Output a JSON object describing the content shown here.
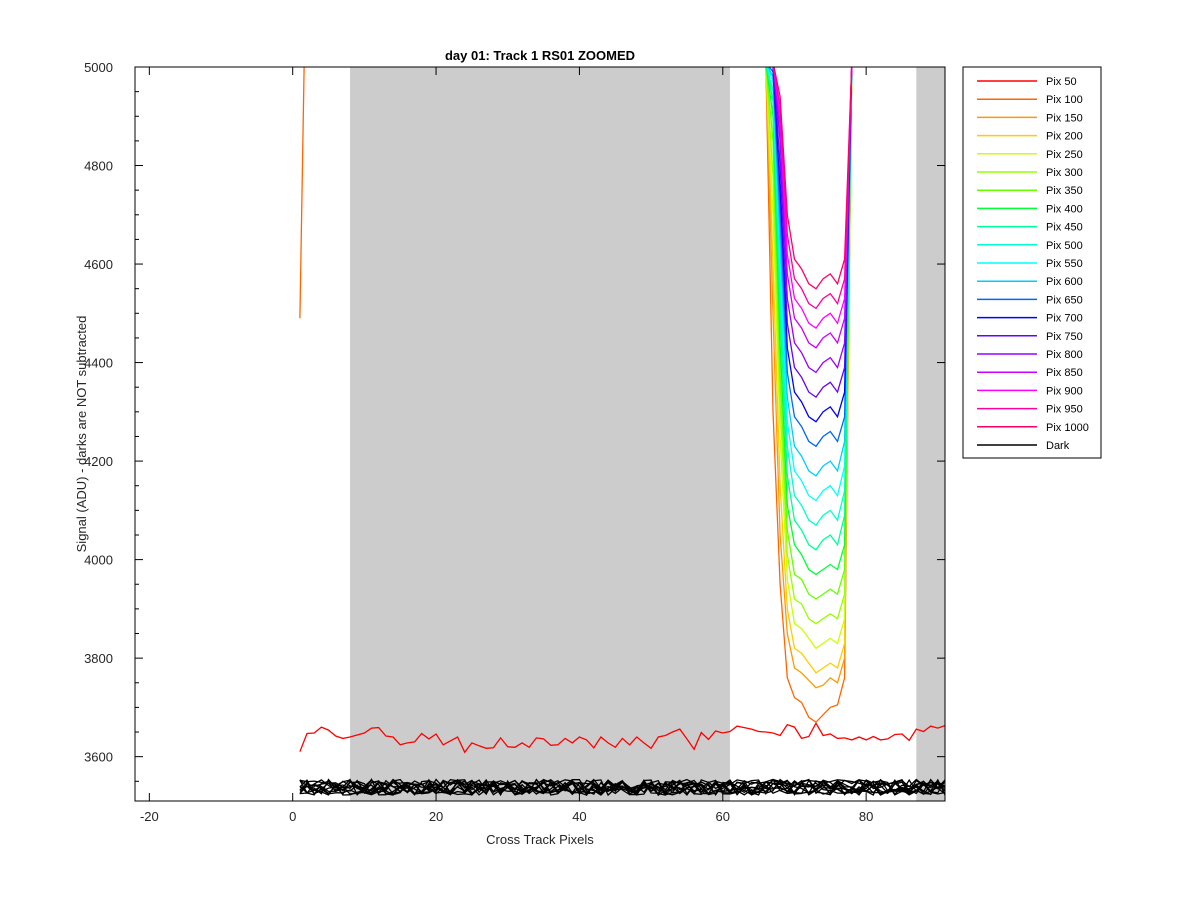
{
  "chart_data": {
    "type": "line",
    "title": "day 01: Track 1  RS01 ZOOMED",
    "xlabel": "Cross Track Pixels",
    "ylabel": "Signal (ADU) - darks are NOT subtracted",
    "xlim": [
      -22,
      91
    ],
    "ylim": [
      3510,
      5000
    ],
    "x_ticks": [
      -20,
      0,
      20,
      40,
      60,
      80
    ],
    "y_ticks": [
      3600,
      3800,
      4000,
      4200,
      4400,
      4600,
      4800,
      5000
    ],
    "grid": false,
    "legend_position": "outside-right",
    "shaded_regions": [
      {
        "x_start": 8,
        "x_end": 61,
        "color": "#cccccc"
      },
      {
        "x_start": 87,
        "x_end": 91,
        "color": "#cccccc"
      }
    ],
    "curve_x": [
      66,
      67,
      68,
      69,
      70,
      71,
      72,
      73,
      74,
      75,
      76,
      77,
      78,
      79
    ],
    "series": [
      {
        "name": "Pix 50",
        "color": "#ff0000",
        "x": [
          1,
          2,
          3,
          4,
          5,
          6,
          7,
          8,
          9,
          10,
          11,
          12,
          13,
          14,
          15,
          16,
          17,
          18,
          19,
          20,
          21,
          22,
          23,
          24,
          25,
          26,
          27,
          28,
          29,
          30,
          31,
          32,
          33,
          34,
          35,
          36,
          37,
          38,
          39,
          40,
          41,
          42,
          43,
          44,
          45,
          46,
          47,
          48,
          49,
          50,
          51,
          52,
          53,
          54,
          55,
          56,
          57,
          58,
          59,
          60,
          61,
          62,
          63,
          64,
          65,
          66,
          67,
          68,
          69,
          70,
          71,
          72,
          73,
          74,
          75,
          76,
          77,
          78,
          79,
          80,
          81,
          82,
          83,
          84,
          85,
          86,
          87,
          88,
          89,
          90,
          91
        ],
        "values": [
          3610,
          3647,
          3648,
          3660,
          3654,
          3642,
          3637,
          3640,
          3644,
          3648,
          3658,
          3659,
          3642,
          3640,
          3624,
          3628,
          3630,
          3647,
          3636,
          3646,
          3624,
          3632,
          3640,
          3609,
          3628,
          3622,
          3617,
          3618,
          3638,
          3620,
          3619,
          3628,
          3619,
          3638,
          3636,
          3623,
          3624,
          3637,
          3628,
          3640,
          3634,
          3618,
          3640,
          3628,
          3619,
          3637,
          3624,
          3640,
          3628,
          3617,
          3640,
          3643,
          3650,
          3656,
          3636,
          3615,
          3649,
          3635,
          3652,
          3648,
          3651,
          3662,
          3659,
          3656,
          3651,
          3650,
          3648,
          3643,
          3665,
          3660,
          3637,
          3641,
          3668,
          3643,
          3646,
          3637,
          3638,
          3634,
          3640,
          3634,
          3641,
          3634,
          3636,
          3645,
          3646,
          3633,
          3656,
          3651,
          3662,
          3658,
          3663
        ]
      },
      {
        "name": "Pix 100",
        "color": "#ff6600",
        "x": [
          1,
          1.6,
          66,
          67,
          68,
          69,
          70,
          71,
          72,
          73,
          74,
          75,
          76,
          77,
          78,
          79
        ],
        "values": [
          4490,
          5010,
          5010,
          4300,
          3950,
          3760,
          3720,
          3710,
          3680,
          3670,
          3685,
          3700,
          3705,
          3760,
          5010,
          5010
        ]
      },
      {
        "name": "Pix 150",
        "color": "#ff9900",
        "values": [
          5010,
          4500,
          4050,
          3850,
          3780,
          3770,
          3755,
          3740,
          3745,
          3760,
          3750,
          3800,
          5010,
          5010
        ]
      },
      {
        "name": "Pix 200",
        "color": "#ffcc00",
        "values": [
          5010,
          4600,
          4150,
          3900,
          3820,
          3810,
          3790,
          3770,
          3780,
          3790,
          3780,
          3830,
          5010,
          5010
        ]
      },
      {
        "name": "Pix 250",
        "color": "#ccff00",
        "values": [
          5010,
          4700,
          4250,
          3960,
          3870,
          3860,
          3840,
          3820,
          3830,
          3840,
          3830,
          3880,
          5010,
          5010
        ]
      },
      {
        "name": "Pix 300",
        "color": "#99ff00",
        "values": [
          5010,
          4780,
          4320,
          4010,
          3920,
          3910,
          3880,
          3870,
          3880,
          3890,
          3880,
          3930,
          5010,
          5010
        ]
      },
      {
        "name": "Pix 350",
        "color": "#66ff00",
        "values": [
          5010,
          4850,
          4380,
          4060,
          3970,
          3960,
          3930,
          3920,
          3930,
          3940,
          3930,
          3980,
          5010,
          5010
        ]
      },
      {
        "name": "Pix 400",
        "color": "#00ff33",
        "values": [
          5010,
          4900,
          4440,
          4110,
          4030,
          4010,
          3980,
          3970,
          3980,
          3990,
          3980,
          4030,
          5010,
          5010
        ]
      },
      {
        "name": "Pix 450",
        "color": "#00ff99",
        "values": [
          5010,
          4930,
          4500,
          4170,
          4080,
          4060,
          4030,
          4020,
          4040,
          4050,
          4030,
          4090,
          5010,
          5010
        ]
      },
      {
        "name": "Pix 500",
        "color": "#00ffcc",
        "values": [
          5010,
          4950,
          4550,
          4230,
          4130,
          4110,
          4080,
          4070,
          4090,
          4100,
          4080,
          4140,
          5010,
          5010
        ]
      },
      {
        "name": "Pix 550",
        "color": "#00ffff",
        "values": [
          5010,
          4970,
          4600,
          4280,
          4180,
          4160,
          4130,
          4120,
          4140,
          4150,
          4130,
          4190,
          5010,
          5010
        ]
      },
      {
        "name": "Pix 600",
        "color": "#00ccff",
        "values": [
          5010,
          4980,
          4650,
          4330,
          4230,
          4210,
          4180,
          4170,
          4190,
          4200,
          4180,
          4240,
          5010,
          5010
        ]
      },
      {
        "name": "Pix 650",
        "color": "#0066ff",
        "values": [
          5010,
          4990,
          4700,
          4380,
          4290,
          4270,
          4240,
          4230,
          4250,
          4260,
          4240,
          4290,
          5010,
          5010
        ]
      },
      {
        "name": "Pix 700",
        "color": "#0000ff",
        "values": [
          5010,
          5000,
          4750,
          4430,
          4340,
          4320,
          4290,
          4280,
          4300,
          4310,
          4290,
          4340,
          5010,
          5010
        ]
      },
      {
        "name": "Pix 750",
        "color": "#6600ff",
        "values": [
          5010,
          5010,
          4800,
          4480,
          4390,
          4370,
          4340,
          4330,
          4350,
          4360,
          4340,
          4390,
          5010,
          5010
        ]
      },
      {
        "name": "Pix 800",
        "color": "#9900ff",
        "values": [
          5010,
          5010,
          4850,
          4530,
          4440,
          4420,
          4390,
          4380,
          4400,
          4410,
          4390,
          4440,
          5010,
          5010
        ]
      },
      {
        "name": "Pix 850",
        "color": "#cc00ff",
        "values": [
          5010,
          5010,
          4880,
          4580,
          4490,
          4470,
          4440,
          4430,
          4450,
          4460,
          4440,
          4490,
          5010,
          5010
        ]
      },
      {
        "name": "Pix 900",
        "color": "#ff00ff",
        "values": [
          5010,
          5010,
          4900,
          4620,
          4530,
          4510,
          4480,
          4470,
          4490,
          4500,
          4480,
          4530,
          5010,
          5010
        ]
      },
      {
        "name": "Pix 950",
        "color": "#ff0099",
        "values": [
          5010,
          5010,
          4920,
          4660,
          4570,
          4550,
          4520,
          4510,
          4530,
          4540,
          4520,
          4570,
          5010,
          5010
        ]
      },
      {
        "name": "Pix 1000",
        "color": "#ff0066",
        "values": [
          5010,
          5010,
          4940,
          4700,
          4610,
          4590,
          4560,
          4550,
          4570,
          4580,
          4560,
          4610,
          5010,
          5010
        ]
      },
      {
        "name": "Dark",
        "color": "#000000",
        "x_start": 1,
        "x_end": 91,
        "baseline": 3538,
        "spread": 16,
        "count": 12
      }
    ]
  }
}
